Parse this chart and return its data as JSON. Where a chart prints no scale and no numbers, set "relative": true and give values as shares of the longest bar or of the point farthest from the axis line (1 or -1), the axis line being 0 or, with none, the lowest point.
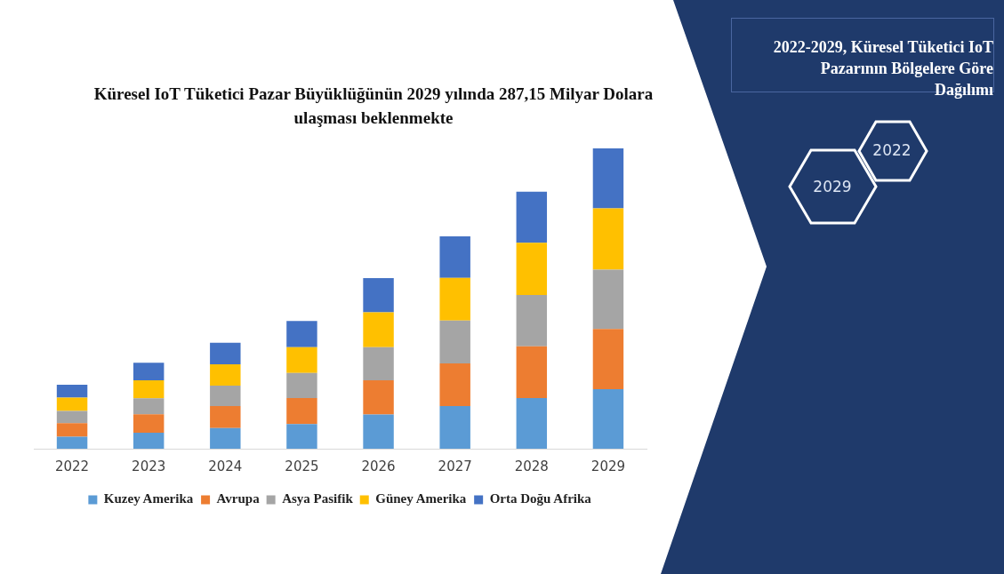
{
  "chart_data": {
    "type": "bar",
    "title": "Küresel IoT Tüketici Pazar Büyüklüğünün 2029 yılında 287,15 Milyar Dolara ulaşması beklenmekte",
    "subtitle": "2022-2029,  Küresel Tüketici IoT Pazarının Bölgelere Göre Dağılımı",
    "categories": [
      "2022",
      "2023",
      "2024",
      "2025",
      "2026",
      "2027",
      "2028",
      "2029"
    ],
    "series": [
      {
        "name": "Kuzey Amerika",
        "color": "#5b9bd5",
        "values": [
          0.04,
          0.053,
          0.069,
          0.082,
          0.114,
          0.142,
          0.169,
          0.198
        ]
      },
      {
        "name": "Avrupa",
        "color": "#ed7d31",
        "values": [
          0.045,
          0.062,
          0.073,
          0.087,
          0.114,
          0.142,
          0.172,
          0.201
        ]
      },
      {
        "name": "Asya Pasifik",
        "color": "#a5a5a5",
        "values": [
          0.041,
          0.053,
          0.068,
          0.083,
          0.11,
          0.143,
          0.171,
          0.197
        ]
      },
      {
        "name": "Güney Amerika",
        "color": "#ffc000",
        "values": [
          0.044,
          0.06,
          0.071,
          0.086,
          0.116,
          0.142,
          0.174,
          0.204
        ]
      },
      {
        "name": "Orta Doğu Afrika",
        "color": "#4472c4",
        "values": [
          0.043,
          0.058,
          0.072,
          0.087,
          0.114,
          0.138,
          0.17,
          0.2
        ]
      }
    ],
    "stacked": true,
    "relative": true,
    "legend": "bottom",
    "annotations": [
      "2022",
      "2029"
    ]
  }
}
